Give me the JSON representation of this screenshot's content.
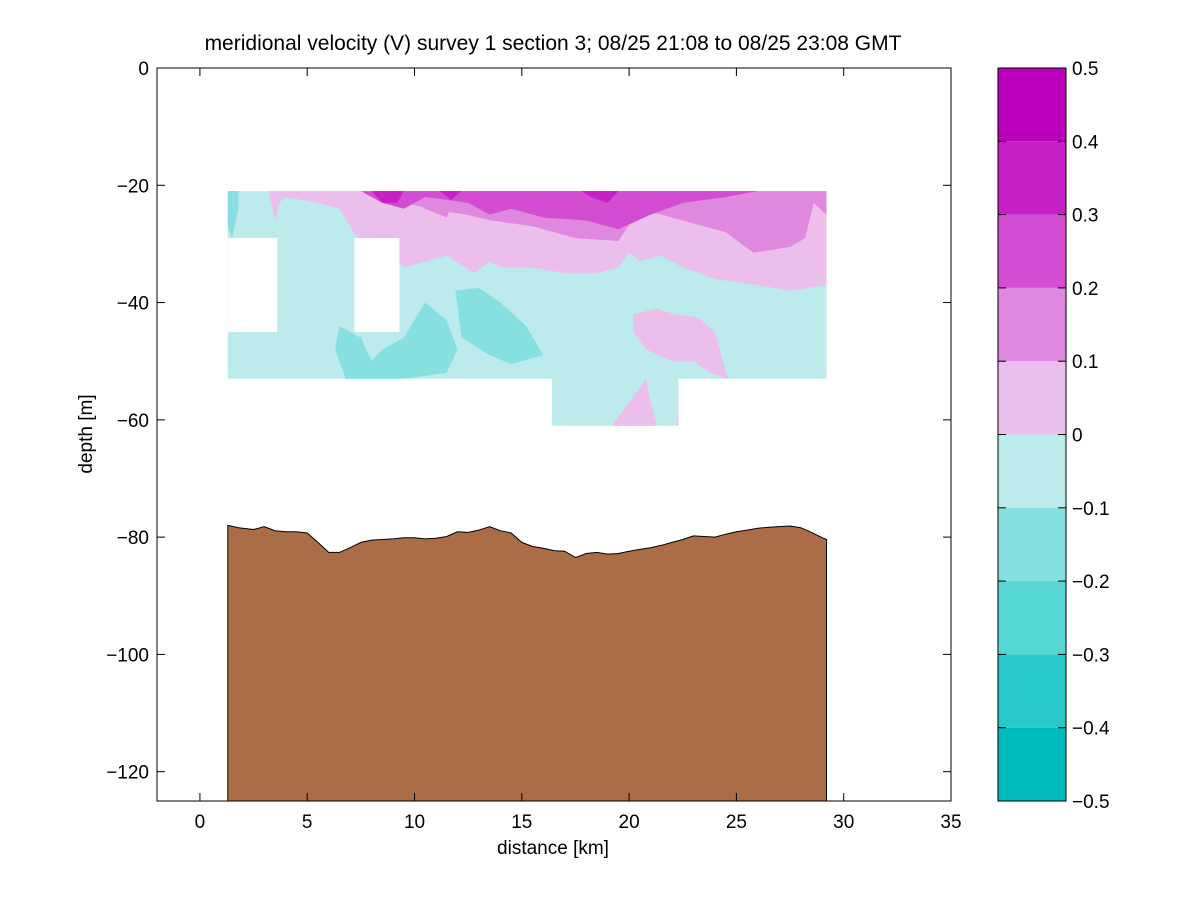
{
  "chart_data": {
    "type": "contour",
    "title": "meridional velocity (V) survey 1 section 3; 08/25 21:08 to 08/25 23:08 GMT",
    "xlabel": "distance [km]",
    "ylabel": "depth [m]",
    "xlim": [
      -2,
      35
    ],
    "ylim": [
      -125,
      0
    ],
    "xticks": [
      0,
      5,
      10,
      15,
      20,
      25,
      30,
      35
    ],
    "yticks": [
      0,
      -20,
      -40,
      -60,
      -80,
      -100,
      -120
    ],
    "grid": false,
    "colorbar": {
      "range": [
        -0.5,
        0.5
      ],
      "ticks": [
        0.5,
        0.4,
        0.3,
        0.2,
        0.1,
        0,
        -0.1,
        -0.2,
        -0.3,
        -0.4,
        -0.5
      ],
      "tick_labels": [
        "0.5",
        "0.4",
        "0.3",
        "0.2",
        "0.1",
        "0",
        "−0.1",
        "−0.2",
        "−0.3",
        "−0.4",
        "−0.5"
      ],
      "levels": [
        {
          "min": 0.4,
          "max": 0.5,
          "color": "#bb00bb"
        },
        {
          "min": 0.3,
          "max": 0.4,
          "color": "#c61fc6"
        },
        {
          "min": 0.2,
          "max": 0.3,
          "color": "#d34dd3"
        },
        {
          "min": 0.1,
          "max": 0.2,
          "color": "#e087e0"
        },
        {
          "min": 0.0,
          "max": 0.1,
          "color": "#ebbeeb"
        },
        {
          "min": -0.1,
          "max": 0.0,
          "color": "#bdebeb"
        },
        {
          "min": -0.2,
          "max": -0.1,
          "color": "#87e0e0"
        },
        {
          "min": -0.3,
          "max": -0.2,
          "color": "#57d6d6"
        },
        {
          "min": -0.4,
          "max": -0.3,
          "color": "#2ac9c9"
        },
        {
          "min": -0.5,
          "max": -0.4,
          "color": "#00bbbb"
        }
      ]
    },
    "data_domain": {
      "x": [
        1.3,
        29.2
      ],
      "y": [
        -21,
        -61
      ]
    },
    "contour_regions": [
      {
        "level": -0.05,
        "points": [
          [
            1.3,
            -21
          ],
          [
            29.2,
            -21
          ],
          [
            29.2,
            -53
          ],
          [
            22.3,
            -53
          ],
          [
            22.3,
            -61
          ],
          [
            16.4,
            -61
          ],
          [
            16.4,
            -53
          ],
          [
            1.3,
            -53
          ]
        ]
      },
      {
        "level": 0.05,
        "points": [
          [
            3.2,
            -21
          ],
          [
            29.2,
            -21
          ],
          [
            29.2,
            -37
          ],
          [
            27.5,
            -38
          ],
          [
            26,
            -37
          ],
          [
            24,
            -36
          ],
          [
            22.5,
            -34
          ],
          [
            21.5,
            -32
          ],
          [
            20.5,
            -33
          ],
          [
            20,
            -31.5
          ],
          [
            19.5,
            -34
          ],
          [
            18.5,
            -35
          ],
          [
            17,
            -35
          ],
          [
            15.5,
            -34
          ],
          [
            14,
            -34
          ],
          [
            13.5,
            -33
          ],
          [
            12.8,
            -35
          ],
          [
            11.5,
            -32
          ],
          [
            10.5,
            -33
          ],
          [
            9.5,
            -34
          ],
          [
            8.5,
            -31
          ],
          [
            7.5,
            -30
          ],
          [
            6.5,
            -24
          ],
          [
            5.5,
            -23
          ],
          [
            4,
            -22
          ],
          [
            3.7,
            -23
          ],
          [
            3.5,
            -26
          ],
          [
            3.2,
            -21
          ]
        ]
      },
      {
        "level": 0.15,
        "points": [
          [
            5.0,
            -21
          ],
          [
            29.2,
            -21
          ],
          [
            29.2,
            -25
          ],
          [
            28.6,
            -23
          ],
          [
            28.2,
            -29
          ],
          [
            27.5,
            -30.5
          ],
          [
            25.8,
            -31.5
          ],
          [
            24.5,
            -28
          ],
          [
            22.5,
            -26
          ],
          [
            20.5,
            -24
          ],
          [
            19.5,
            -29.5
          ],
          [
            17.5,
            -29
          ],
          [
            15.5,
            -27
          ],
          [
            13.6,
            -26
          ],
          [
            12.4,
            -25
          ],
          [
            11.5,
            -24.5
          ],
          [
            10.5,
            -23.8
          ],
          [
            9.5,
            -23
          ],
          [
            9,
            -21
          ]
        ]
      },
      {
        "level": 0.15,
        "points": [
          [
            9,
            -21
          ],
          [
            12,
            -21
          ],
          [
            11.5,
            -25.5
          ],
          [
            10.5,
            -24
          ]
        ]
      },
      {
        "level": 0.25,
        "points": [
          [
            7.5,
            -21
          ],
          [
            26,
            -21
          ],
          [
            24.5,
            -22
          ],
          [
            22.5,
            -23
          ],
          [
            21,
            -25
          ],
          [
            19.5,
            -27.5
          ],
          [
            18,
            -26
          ],
          [
            16,
            -25.5
          ],
          [
            14.5,
            -24
          ],
          [
            13.5,
            -25
          ],
          [
            12.5,
            -23
          ],
          [
            11.5,
            -22.5
          ],
          [
            10.5,
            -22
          ],
          [
            9.5,
            -24
          ],
          [
            8.5,
            -23
          ],
          [
            7.5,
            -21
          ]
        ]
      },
      {
        "level": 0.35,
        "points": [
          [
            8.0,
            -21
          ],
          [
            9.5,
            -21
          ],
          [
            9.2,
            -23
          ],
          [
            8.5,
            -23
          ],
          [
            8.0,
            -21
          ]
        ]
      },
      {
        "level": 0.35,
        "points": [
          [
            11.2,
            -21
          ],
          [
            12.2,
            -21
          ],
          [
            11.7,
            -22.5
          ],
          [
            11.2,
            -21
          ]
        ]
      },
      {
        "level": 0.35,
        "points": [
          [
            17.8,
            -21
          ],
          [
            19.5,
            -21
          ],
          [
            19,
            -23
          ],
          [
            18.2,
            -22
          ],
          [
            17.8,
            -21
          ]
        ]
      },
      {
        "level": 0.05,
        "points": [
          [
            20.2,
            -42
          ],
          [
            21.3,
            -41
          ],
          [
            22.1,
            -42
          ],
          [
            23.2,
            -42.5
          ],
          [
            24,
            -45
          ],
          [
            24.6,
            -53
          ],
          [
            23.8,
            -52
          ],
          [
            23,
            -50
          ],
          [
            22,
            -50
          ],
          [
            20.8,
            -48
          ],
          [
            20.2,
            -45
          ]
        ]
      },
      {
        "level": 0.05,
        "points": [
          [
            19.2,
            -61
          ],
          [
            20.2,
            -56
          ],
          [
            20.8,
            -53
          ],
          [
            21,
            -57
          ],
          [
            21.3,
            -61
          ]
        ]
      },
      {
        "level": 0.05,
        "points": [
          [
            22.2,
            -61
          ],
          [
            22.3,
            -59
          ],
          [
            22.3,
            -61
          ]
        ]
      },
      {
        "level": -0.15,
        "points": [
          [
            1.3,
            -21
          ],
          [
            1.8,
            -21
          ],
          [
            1.8,
            -24
          ],
          [
            1.5,
            -29
          ],
          [
            1.3,
            -27
          ]
        ]
      },
      {
        "level": -0.15,
        "points": [
          [
            6.5,
            -44
          ],
          [
            7.5,
            -46
          ],
          [
            8.0,
            -50
          ],
          [
            8.5,
            -48
          ],
          [
            9.5,
            -46
          ],
          [
            10.5,
            -40
          ],
          [
            11.5,
            -43
          ],
          [
            12,
            -48
          ],
          [
            11.5,
            -52
          ],
          [
            10.5,
            -52.5
          ],
          [
            9.5,
            -53
          ],
          [
            6.8,
            -53
          ],
          [
            6.3,
            -48
          ]
        ]
      },
      {
        "level": -0.15,
        "points": [
          [
            11.9,
            -38
          ],
          [
            13,
            -37.5
          ],
          [
            14,
            -40
          ],
          [
            15.2,
            -44
          ],
          [
            16,
            -49
          ],
          [
            14.5,
            -50.5
          ],
          [
            13.5,
            -49
          ],
          [
            12.2,
            -46
          ]
        ]
      }
    ],
    "masks": [
      {
        "x": [
          1.3,
          3.6
        ],
        "y": [
          -29,
          -45
        ]
      },
      {
        "x": [
          7.2,
          9.3
        ],
        "y": [
          -29,
          -45
        ]
      }
    ],
    "seafloor": {
      "color": "#ab6d46",
      "x": [
        1.3,
        1.8,
        2.5,
        3.0,
        3.5,
        4.0,
        4.5,
        5.0,
        5.5,
        6.0,
        6.5,
        7.0,
        7.5,
        8.0,
        8.5,
        9.0,
        9.5,
        10.0,
        10.5,
        11.0,
        11.5,
        12.0,
        12.5,
        13.0,
        13.5,
        14.0,
        14.5,
        15.0,
        15.5,
        16.0,
        16.5,
        17.0,
        17.5,
        18.0,
        18.5,
        19.0,
        19.5,
        20.0,
        20.5,
        21.0,
        21.5,
        22.0,
        22.5,
        23.0,
        23.5,
        24.0,
        24.5,
        25.0,
        25.5,
        26.0,
        26.5,
        27.0,
        27.5,
        28.0,
        28.5,
        29.0,
        29.2
      ],
      "depth": [
        -78,
        -78.4,
        -78.7,
        -78.2,
        -78.9,
        -79.1,
        -79.1,
        -79.3,
        -80.9,
        -82.6,
        -82.6,
        -81.8,
        -80.9,
        -80.5,
        -80.4,
        -80.3,
        -80.1,
        -80.1,
        -80.3,
        -80.2,
        -79.9,
        -79.1,
        -79.2,
        -78.8,
        -78.2,
        -78.9,
        -79.3,
        -80.9,
        -81.6,
        -81.9,
        -82.3,
        -82.4,
        -83.5,
        -82.8,
        -82.6,
        -82.9,
        -82.8,
        -82.4,
        -82.1,
        -81.8,
        -81.4,
        -80.9,
        -80.4,
        -79.8,
        -79.9,
        -80.0,
        -79.5,
        -79.1,
        -78.8,
        -78.5,
        -78.3,
        -78.2,
        -78.1,
        -78.4,
        -79.2,
        -80.1,
        -80.4
      ]
    }
  }
}
